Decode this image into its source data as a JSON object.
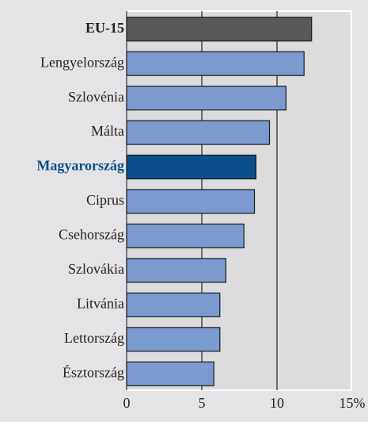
{
  "chart_data": {
    "type": "barh",
    "categories": [
      "EU-15",
      "Lengyelország",
      "Szlovénia",
      "Málta",
      "Magyarország",
      "Ciprus",
      "Csehország",
      "Szlovákia",
      "Litvánia",
      "Lettország",
      "Észtország"
    ],
    "values": [
      12.3,
      11.8,
      10.6,
      9.5,
      8.6,
      8.5,
      7.8,
      6.6,
      6.2,
      6.2,
      5.8
    ],
    "colors": [
      "#58585a",
      "#7b9bd0",
      "#7b9bd0",
      "#7b9bd0",
      "#0b4f8c",
      "#7b9bd0",
      "#7b9bd0",
      "#7b9bd0",
      "#7b9bd0",
      "#7b9bd0",
      "#7b9bd0"
    ],
    "xlim": [
      0,
      15
    ],
    "xticks": [
      0,
      5,
      10,
      {
        "value": 15,
        "label": "15%"
      }
    ],
    "grid": true
  }
}
